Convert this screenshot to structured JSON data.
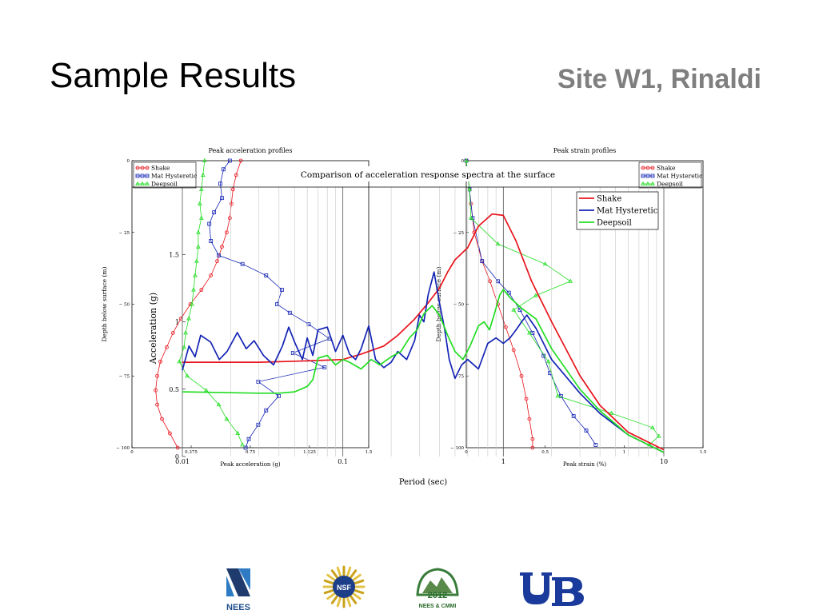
{
  "slide": {
    "title": "Sample Results",
    "subtitle": "Site W1, Rinaldi"
  },
  "colors": {
    "shake": "#e8141c",
    "mat": "#1424b4",
    "deepsoil": "#22dd22",
    "ub_blue": "#1a3b9c",
    "nees_navy": "#1f3b6e"
  },
  "logos": {
    "nees_label": "NEES",
    "nsf_label": "NSF",
    "neescmmi_year": "2012",
    "neescmmi_label": "NEES & CMMI"
  },
  "chart_data": [
    {
      "type": "line",
      "panel": "left",
      "title": "Peak acceleration profiles",
      "xlabel": "Peak acceleration (g)",
      "ylabel": "Depth below surface (m)",
      "xlim": [
        0,
        1.5
      ],
      "ylim": [
        0,
        100
      ],
      "y_inverted": true,
      "xticks": [
        "0",
        "0.375",
        "0.75",
        "1.125",
        "1.5"
      ],
      "yticks": [
        "0",
        "− 25",
        "− 50",
        "− 75",
        "− 100"
      ],
      "legend": "top-left",
      "series": [
        {
          "name": "Shake",
          "marker": "circle",
          "points": [
            [
              0.69,
              0
            ],
            [
              0.66,
              5
            ],
            [
              0.64,
              10
            ],
            [
              0.63,
              15
            ],
            [
              0.62,
              20
            ],
            [
              0.6,
              25
            ],
            [
              0.57,
              30
            ],
            [
              0.54,
              35
            ],
            [
              0.5,
              40
            ],
            [
              0.44,
              45
            ],
            [
              0.37,
              50
            ],
            [
              0.31,
              55
            ],
            [
              0.26,
              60
            ],
            [
              0.22,
              65
            ],
            [
              0.18,
              70
            ],
            [
              0.16,
              75
            ],
            [
              0.15,
              80
            ],
            [
              0.16,
              85
            ],
            [
              0.19,
              90
            ],
            [
              0.24,
              95
            ],
            [
              0.29,
              100
            ]
          ]
        },
        {
          "name": "Mat Hysteretic",
          "marker": "square",
          "points": [
            [
              0.62,
              0
            ],
            [
              0.58,
              3
            ],
            [
              0.56,
              8
            ],
            [
              0.57,
              13
            ],
            [
              0.52,
              18
            ],
            [
              0.49,
              22
            ],
            [
              0.5,
              28
            ],
            [
              0.55,
              33
            ],
            [
              0.7,
              36
            ],
            [
              0.85,
              40
            ],
            [
              0.95,
              45
            ],
            [
              0.92,
              50
            ],
            [
              1.0,
              53
            ],
            [
              1.12,
              57
            ],
            [
              1.25,
              62
            ],
            [
              1.02,
              67
            ],
            [
              1.22,
              72
            ],
            [
              0.8,
              77
            ],
            [
              0.93,
              82
            ],
            [
              0.85,
              87
            ],
            [
              0.8,
              92
            ],
            [
              0.74,
              97
            ],
            [
              0.72,
              100
            ]
          ]
        },
        {
          "name": "Deepsoil",
          "marker": "triangle",
          "points": [
            [
              0.46,
              0
            ],
            [
              0.45,
              5
            ],
            [
              0.44,
              10
            ],
            [
              0.43,
              15
            ],
            [
              0.44,
              20
            ],
            [
              0.42,
              25
            ],
            [
              0.42,
              30
            ],
            [
              0.41,
              35
            ],
            [
              0.4,
              40
            ],
            [
              0.39,
              45
            ],
            [
              0.38,
              50
            ],
            [
              0.36,
              55
            ],
            [
              0.34,
              60
            ],
            [
              0.33,
              65
            ],
            [
              0.3,
              70
            ],
            [
              0.35,
              75
            ],
            [
              0.47,
              80
            ],
            [
              0.55,
              85
            ],
            [
              0.6,
              90
            ],
            [
              0.67,
              95
            ],
            [
              0.7,
              99
            ]
          ]
        }
      ]
    },
    {
      "type": "line",
      "panel": "right",
      "title": "Peak strain profiles",
      "xlabel": "Peak strain (%)",
      "ylabel": "Depth below surface (m)",
      "xlim": [
        0,
        1.5
      ],
      "ylim": [
        0,
        100
      ],
      "y_inverted": true,
      "xticks": [
        "0",
        "0.5",
        "1",
        "1.5"
      ],
      "yticks": [
        "0",
        "− 25",
        "− 50",
        "− 75",
        "− 100"
      ],
      "legend": "top-right",
      "series": [
        {
          "name": "Shake",
          "marker": "circle",
          "points": [
            [
              0.0,
              0
            ],
            [
              0.01,
              5
            ],
            [
              0.02,
              10
            ],
            [
              0.03,
              15
            ],
            [
              0.05,
              25
            ],
            [
              0.1,
              35
            ],
            [
              0.15,
              42
            ],
            [
              0.2,
              50
            ],
            [
              0.25,
              58
            ],
            [
              0.3,
              66
            ],
            [
              0.35,
              75
            ],
            [
              0.38,
              83
            ],
            [
              0.4,
              90
            ],
            [
              0.42,
              97
            ],
            [
              0.42,
              100
            ]
          ]
        },
        {
          "name": "Mat Hysteretic",
          "marker": "square",
          "points": [
            [
              0.0,
              0
            ],
            [
              0.01,
              5
            ],
            [
              0.02,
              10
            ],
            [
              0.04,
              20
            ],
            [
              0.1,
              35
            ],
            [
              0.2,
              42
            ],
            [
              0.27,
              46
            ],
            [
              0.34,
              52
            ],
            [
              0.42,
              60
            ],
            [
              0.49,
              68
            ],
            [
              0.53,
              74
            ],
            [
              0.6,
              82
            ],
            [
              0.68,
              89
            ],
            [
              0.76,
              94
            ],
            [
              0.82,
              99
            ]
          ]
        },
        {
          "name": "Deepsoil",
          "marker": "triangle",
          "points": [
            [
              0.0,
              0
            ],
            [
              0.01,
              5
            ],
            [
              0.02,
              10
            ],
            [
              0.03,
              20
            ],
            [
              0.2,
              29
            ],
            [
              0.5,
              36
            ],
            [
              0.66,
              42
            ],
            [
              0.44,
              47
            ],
            [
              0.3,
              52
            ],
            [
              0.4,
              60
            ],
            [
              0.52,
              70
            ],
            [
              0.58,
              82
            ],
            [
              0.92,
              88
            ],
            [
              1.18,
              93
            ],
            [
              1.22,
              96
            ],
            [
              1.16,
              99
            ]
          ]
        }
      ]
    },
    {
      "type": "line",
      "panel": "overlay",
      "title": "Comparison of acceleration response spectra at the surface",
      "xlabel": "Period (sec)",
      "ylabel": "Acceleration (g)",
      "x_scale": "log",
      "xlim": [
        0.01,
        10
      ],
      "ylim": [
        0,
        2
      ],
      "xticks": [
        "0.01",
        "0.1",
        "1",
        "10"
      ],
      "yticks": [
        "0",
        "0.5",
        "1",
        "1.5"
      ],
      "legend": "top-right",
      "series": [
        {
          "name": "Shake",
          "points": [
            [
              0.01,
              0.7
            ],
            [
              0.03,
              0.7
            ],
            [
              0.06,
              0.71
            ],
            [
              0.1,
              0.72
            ],
            [
              0.13,
              0.76
            ],
            [
              0.18,
              0.82
            ],
            [
              0.22,
              0.9
            ],
            [
              0.28,
              1.02
            ],
            [
              0.34,
              1.14
            ],
            [
              0.4,
              1.25
            ],
            [
              0.45,
              1.37
            ],
            [
              0.5,
              1.46
            ],
            [
              0.6,
              1.55
            ],
            [
              0.7,
              1.71
            ],
            [
              0.85,
              1.8
            ],
            [
              1.0,
              1.79
            ],
            [
              1.2,
              1.6
            ],
            [
              1.5,
              1.3
            ],
            [
              2.0,
              1.0
            ],
            [
              3.0,
              0.6
            ],
            [
              4.0,
              0.38
            ],
            [
              6.0,
              0.18
            ],
            [
              10.0,
              0.05
            ]
          ]
        },
        {
          "name": "Mat Hysteretic",
          "points": [
            [
              0.01,
              0.64
            ],
            [
              0.011,
              0.82
            ],
            [
              0.012,
              0.74
            ],
            [
              0.013,
              0.9
            ],
            [
              0.015,
              0.85
            ],
            [
              0.017,
              0.72
            ],
            [
              0.019,
              0.78
            ],
            [
              0.022,
              0.92
            ],
            [
              0.025,
              0.8
            ],
            [
              0.028,
              0.86
            ],
            [
              0.032,
              0.75
            ],
            [
              0.037,
              0.68
            ],
            [
              0.042,
              0.82
            ],
            [
              0.046,
              0.96
            ],
            [
              0.05,
              0.85
            ],
            [
              0.056,
              0.72
            ],
            [
              0.06,
              0.88
            ],
            [
              0.065,
              0.75
            ],
            [
              0.07,
              0.94
            ],
            [
              0.08,
              0.96
            ],
            [
              0.09,
              0.78
            ],
            [
              0.1,
              0.9
            ],
            [
              0.11,
              0.76
            ],
            [
              0.12,
              0.72
            ],
            [
              0.13,
              0.8
            ],
            [
              0.145,
              0.97
            ],
            [
              0.16,
              0.72
            ],
            [
              0.18,
              0.66
            ],
            [
              0.2,
              0.7
            ],
            [
              0.22,
              0.78
            ],
            [
              0.25,
              0.72
            ],
            [
              0.28,
              0.86
            ],
            [
              0.3,
              1.05
            ],
            [
              0.32,
              1.0
            ],
            [
              0.34,
              1.2
            ],
            [
              0.37,
              1.37
            ],
            [
              0.4,
              1.14
            ],
            [
              0.43,
              0.95
            ],
            [
              0.46,
              0.72
            ],
            [
              0.5,
              0.58
            ],
            [
              0.55,
              0.68
            ],
            [
              0.6,
              0.72
            ],
            [
              0.7,
              0.65
            ],
            [
              0.8,
              0.84
            ],
            [
              0.9,
              0.88
            ],
            [
              1.0,
              0.84
            ],
            [
              1.1,
              0.88
            ],
            [
              1.2,
              0.94
            ],
            [
              1.3,
              1.0
            ],
            [
              1.4,
              1.05
            ],
            [
              1.6,
              0.95
            ],
            [
              2.0,
              0.72
            ],
            [
              3.0,
              0.47
            ],
            [
              4.0,
              0.32
            ],
            [
              6.0,
              0.16
            ],
            [
              10.0,
              0.03
            ]
          ]
        },
        {
          "name": "Deepsoil",
          "points": [
            [
              0.01,
              0.48
            ],
            [
              0.03,
              0.47
            ],
            [
              0.04,
              0.47
            ],
            [
              0.05,
              0.48
            ],
            [
              0.06,
              0.52
            ],
            [
              0.065,
              0.57
            ],
            [
              0.07,
              0.73
            ],
            [
              0.08,
              0.75
            ],
            [
              0.09,
              0.68
            ],
            [
              0.1,
              0.72
            ],
            [
              0.11,
              0.7
            ],
            [
              0.13,
              0.65
            ],
            [
              0.15,
              0.72
            ],
            [
              0.17,
              0.68
            ],
            [
              0.2,
              0.74
            ],
            [
              0.23,
              0.78
            ],
            [
              0.26,
              0.88
            ],
            [
              0.29,
              0.94
            ],
            [
              0.32,
              1.06
            ],
            [
              0.36,
              1.12
            ],
            [
              0.4,
              1.05
            ],
            [
              0.45,
              0.9
            ],
            [
              0.5,
              0.78
            ],
            [
              0.56,
              0.72
            ],
            [
              0.62,
              0.82
            ],
            [
              0.7,
              0.97
            ],
            [
              0.76,
              1.0
            ],
            [
              0.82,
              0.94
            ],
            [
              0.88,
              1.06
            ],
            [
              0.95,
              1.2
            ],
            [
              1.0,
              1.24
            ],
            [
              1.1,
              1.18
            ],
            [
              1.3,
              1.1
            ],
            [
              1.6,
              1.02
            ],
            [
              2.0,
              0.8
            ],
            [
              3.0,
              0.5
            ],
            [
              4.0,
              0.34
            ],
            [
              6.0,
              0.16
            ],
            [
              10.0,
              0.03
            ]
          ]
        }
      ]
    }
  ]
}
